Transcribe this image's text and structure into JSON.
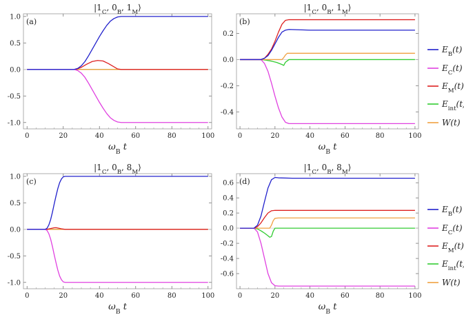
{
  "chart_data": [
    {
      "panel": "(a)",
      "type": "line",
      "title": "|1_C, 0_B, 1_M⟩",
      "xlabel": "ω_B t",
      "xlim": [
        -2,
        102
      ],
      "ylim": [
        -1.12,
        1.05
      ],
      "xticks": [
        0,
        20,
        40,
        60,
        80,
        100
      ],
      "yticks": [
        -1.0,
        -0.5,
        0.0,
        0.5,
        1.0
      ],
      "ytick_labels": [
        "-1.0",
        "-0.5",
        "0.0",
        "0.5",
        "1.0"
      ],
      "series": [
        {
          "name": "E_B(t)",
          "color": "#2020cc",
          "x": [
            0,
            26,
            28,
            30,
            32,
            34,
            36,
            38,
            40,
            42,
            44,
            46,
            48,
            50,
            52,
            60,
            80,
            100
          ],
          "y": [
            0,
            0,
            0.02,
            0.07,
            0.15,
            0.26,
            0.38,
            0.5,
            0.62,
            0.73,
            0.83,
            0.91,
            0.96,
            0.99,
            1.0,
            1.0,
            1.0,
            1.0
          ]
        },
        {
          "name": "E_C(t)",
          "color": "#e040e0",
          "x": [
            0,
            26,
            28,
            30,
            32,
            34,
            36,
            38,
            40,
            42,
            44,
            46,
            48,
            50,
            52,
            60,
            80,
            100
          ],
          "y": [
            0,
            0,
            -0.02,
            -0.07,
            -0.15,
            -0.26,
            -0.38,
            -0.5,
            -0.62,
            -0.73,
            -0.83,
            -0.91,
            -0.96,
            -0.99,
            -1.0,
            -1.0,
            -1.0,
            -1.0
          ]
        },
        {
          "name": "E_M(t)",
          "color": "#dd2020",
          "x": [
            0,
            27,
            30,
            33,
            36,
            39,
            42,
            45,
            48,
            50,
            52,
            100
          ],
          "y": [
            0,
            0,
            0.04,
            0.1,
            0.15,
            0.17,
            0.16,
            0.11,
            0.05,
            0.01,
            0,
            0
          ]
        },
        {
          "name": "E_int(t)",
          "color": "#30cc30",
          "x": [
            0,
            100
          ],
          "y": [
            0,
            0
          ]
        },
        {
          "name": "W(t)",
          "color": "#f0a040",
          "x": [
            0,
            100
          ],
          "y": [
            0,
            0
          ]
        }
      ]
    },
    {
      "panel": "(b)",
      "type": "line",
      "title": "|1_C, 0_B, 1_M⟩",
      "xlabel": "ω_B t",
      "xlim": [
        -2,
        102
      ],
      "ylim": [
        -0.53,
        0.35
      ],
      "xticks": [
        0,
        20,
        40,
        60,
        80,
        100
      ],
      "yticks": [
        -0.4,
        -0.2,
        0.0,
        0.2
      ],
      "ytick_labels": [
        "-0.4",
        "-0.2",
        "0.0",
        "0.2"
      ],
      "series": [
        {
          "name": "E_B(t)",
          "color": "#2020cc",
          "x": [
            0,
            12,
            14,
            16,
            18,
            20,
            22,
            24,
            26,
            28,
            40,
            60,
            80,
            100
          ],
          "y": [
            0,
            0,
            0.01,
            0.03,
            0.07,
            0.12,
            0.17,
            0.21,
            0.225,
            0.23,
            0.225,
            0.225,
            0.225,
            0.225
          ]
        },
        {
          "name": "E_C(t)",
          "color": "#e040e0",
          "x": [
            0,
            12,
            14,
            16,
            18,
            20,
            22,
            24,
            26,
            28,
            40,
            60,
            80,
            100
          ],
          "y": [
            0,
            0,
            -0.03,
            -0.09,
            -0.18,
            -0.28,
            -0.37,
            -0.44,
            -0.48,
            -0.49,
            -0.49,
            -0.49,
            -0.49,
            -0.49
          ]
        },
        {
          "name": "E_M(t)",
          "color": "#dd2020",
          "x": [
            0,
            12,
            14,
            16,
            18,
            20,
            22,
            24,
            26,
            28,
            40,
            60,
            80,
            100
          ],
          "y": [
            0,
            0,
            0.01,
            0.04,
            0.08,
            0.14,
            0.21,
            0.27,
            0.3,
            0.305,
            0.305,
            0.305,
            0.305,
            0.305
          ]
        },
        {
          "name": "E_int(t)",
          "color": "#30cc30",
          "x": [
            0,
            12,
            15,
            18,
            21,
            24,
            25,
            26,
            28,
            40,
            60,
            80,
            100
          ],
          "y": [
            0,
            0,
            -0.005,
            -0.012,
            -0.022,
            -0.038,
            -0.045,
            -0.02,
            0,
            0,
            0,
            0,
            0
          ]
        },
        {
          "name": "W(t)",
          "color": "#f0a040",
          "x": [
            0,
            24,
            25,
            26,
            27,
            30,
            40,
            60,
            80,
            100
          ],
          "y": [
            0,
            0,
            0.015,
            0.035,
            0.048,
            0.048,
            0.048,
            0.048,
            0.048,
            0.048
          ]
        }
      ]
    },
    {
      "panel": "(c)",
      "type": "line",
      "title": "|1_C, 0_B, 8_M⟩",
      "xlabel": "ω_B t",
      "xlim": [
        -2,
        102
      ],
      "ylim": [
        -1.12,
        1.05
      ],
      "xticks": [
        0,
        20,
        40,
        60,
        80,
        100
      ],
      "yticks": [
        -1.0,
        -0.5,
        0.0,
        0.5,
        1.0
      ],
      "ytick_labels": [
        "-1.0",
        "-0.5",
        "0.0",
        "0.5",
        "1.0"
      ],
      "series": [
        {
          "name": "E_B(t)",
          "color": "#2020cc",
          "x": [
            0,
            10,
            11,
            12,
            13,
            14,
            15,
            16,
            17,
            18,
            19,
            20,
            21,
            22,
            30,
            60,
            100
          ],
          "y": [
            0,
            0,
            0.02,
            0.08,
            0.18,
            0.32,
            0.48,
            0.63,
            0.77,
            0.88,
            0.95,
            0.99,
            1.0,
            1.0,
            1.0,
            1.0,
            1.0
          ]
        },
        {
          "name": "E_C(t)",
          "color": "#e040e0",
          "x": [
            0,
            10,
            11,
            12,
            13,
            14,
            15,
            16,
            17,
            18,
            19,
            20,
            21,
            22,
            30,
            60,
            100
          ],
          "y": [
            0,
            0,
            -0.02,
            -0.08,
            -0.18,
            -0.32,
            -0.48,
            -0.63,
            -0.77,
            -0.88,
            -0.95,
            -0.99,
            -1.0,
            -1.0,
            -1.0,
            -1.0,
            -1.0
          ]
        },
        {
          "name": "E_M(t)",
          "color": "#dd2020",
          "x": [
            0,
            11,
            13,
            15,
            16,
            17,
            19,
            21,
            100
          ],
          "y": [
            0,
            0,
            0.015,
            0.03,
            0.032,
            0.025,
            0.01,
            0,
            0
          ]
        },
        {
          "name": "E_int(t)",
          "color": "#30cc30",
          "x": [
            0,
            100
          ],
          "y": [
            0,
            0
          ]
        },
        {
          "name": "W(t)",
          "color": "#f0a040",
          "x": [
            0,
            100
          ],
          "y": [
            0,
            0
          ]
        }
      ]
    },
    {
      "panel": "(d)",
      "type": "line",
      "title": "|1_C, 0_B, 8_M⟩",
      "xlabel": "ω_B t",
      "xlim": [
        -2,
        102
      ],
      "ylim": [
        -0.8,
        0.72
      ],
      "xticks": [
        0,
        20,
        40,
        60,
        80,
        100
      ],
      "yticks": [
        -0.6,
        -0.4,
        -0.2,
        0.0,
        0.2,
        0.4,
        0.6
      ],
      "ytick_labels": [
        "-0.6",
        "-0.4",
        "-0.2",
        "0.0",
        "0.2",
        "0.4",
        "0.6"
      ],
      "series": [
        {
          "name": "E_B(t)",
          "color": "#2020cc",
          "x": [
            0,
            8,
            10,
            12,
            14,
            16,
            18,
            20,
            22,
            30,
            60,
            100
          ],
          "y": [
            0,
            0,
            0.04,
            0.16,
            0.35,
            0.53,
            0.64,
            0.67,
            0.665,
            0.66,
            0.66,
            0.66
          ]
        },
        {
          "name": "E_C(t)",
          "color": "#e040e0",
          "x": [
            0,
            8,
            10,
            12,
            14,
            16,
            18,
            20,
            22,
            30,
            60,
            100
          ],
          "y": [
            0,
            0,
            -0.05,
            -0.2,
            -0.4,
            -0.6,
            -0.72,
            -0.76,
            -0.765,
            -0.765,
            -0.765,
            -0.765
          ]
        },
        {
          "name": "E_M(t)",
          "color": "#dd2020",
          "x": [
            0,
            8,
            10,
            12,
            14,
            16,
            18,
            20,
            24,
            30,
            60,
            100
          ],
          "y": [
            0,
            0,
            0.02,
            0.07,
            0.14,
            0.2,
            0.23,
            0.235,
            0.235,
            0.235,
            0.235,
            0.235
          ]
        },
        {
          "name": "E_int(t)",
          "color": "#30cc30",
          "x": [
            0,
            8,
            10,
            12,
            14,
            16,
            17,
            18,
            19,
            20,
            30,
            60,
            100
          ],
          "y": [
            0,
            0,
            -0.01,
            -0.035,
            -0.065,
            -0.1,
            -0.12,
            -0.11,
            -0.04,
            0,
            0,
            0,
            0
          ]
        },
        {
          "name": "W(t)",
          "color": "#f0a040",
          "x": [
            0,
            17,
            18,
            19,
            20,
            22,
            30,
            60,
            100
          ],
          "y": [
            0,
            0,
            0.04,
            0.1,
            0.13,
            0.135,
            0.135,
            0.135,
            0.135
          ]
        }
      ]
    }
  ],
  "legend": [
    {
      "label": "E_B(t)",
      "color": "#2020cc"
    },
    {
      "label": "E_C(t)",
      "color": "#e040e0"
    },
    {
      "label": "E_M(t)",
      "color": "#dd2020"
    },
    {
      "label": "E_int(t)",
      "color": "#30cc30"
    },
    {
      "label": "W(t)",
      "color": "#f0a040"
    }
  ]
}
